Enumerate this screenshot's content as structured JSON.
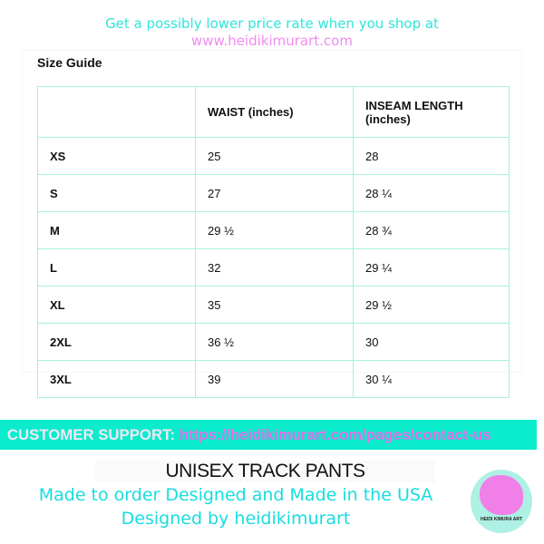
{
  "promo": {
    "line1": "Get a possibly lower price rate when you shop at",
    "line2": "www.heidikimurart.com"
  },
  "size_guide": {
    "title": "Size Guide",
    "headers": [
      "",
      "WAIST (inches)",
      "INSEAM LENGTH (inches)"
    ],
    "rows": [
      [
        "XS",
        "25",
        "28"
      ],
      [
        "S",
        "27",
        "28 ¼"
      ],
      [
        "M",
        "29 ½",
        "28 ¾"
      ],
      [
        "L",
        "32",
        "29 ¼"
      ],
      [
        "XL",
        "35",
        "29 ½"
      ],
      [
        "2XL",
        "36 ½",
        "30"
      ],
      [
        "3XL",
        "39",
        "30 ¼"
      ]
    ]
  },
  "support": {
    "label": "CUSTOMER SUPPORT:",
    "url": "https://heidikimurart.com/pages/contact-us"
  },
  "product": {
    "title": "UNISEX TRACK PANTS",
    "line1": "Made to order Designed and Made in the USA",
    "line2": "Designed by heidikimurart"
  },
  "logo": {
    "text": "HEIDI KIMURA ART"
  },
  "colors": {
    "teal": "#0beccc",
    "pink": "#e070e8",
    "cyan_text": "#18dde0",
    "table_border": "#a8f0de"
  }
}
